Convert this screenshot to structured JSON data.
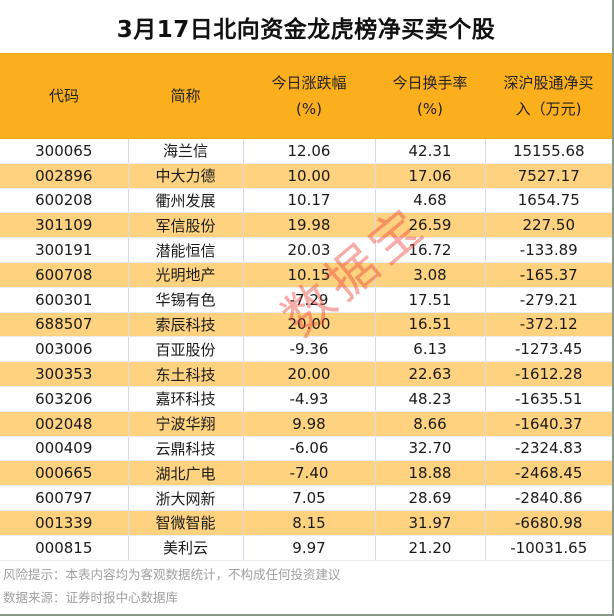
{
  "title": "3月17日北向资金龙虎榜净买卖个股",
  "colors": {
    "header_bg": "#FBAF1D",
    "alt_row_bg": "#FED27E",
    "row_bg": "#FFFFFF",
    "watermark": "#F0463C"
  },
  "table": {
    "headers": [
      {
        "line1": "代码",
        "line2": ""
      },
      {
        "line1": "简称",
        "line2": ""
      },
      {
        "line1": "今日涨跌幅",
        "line2": "(%)"
      },
      {
        "line1": "今日换手率",
        "line2": "(%)"
      },
      {
        "line1": "深沪股通净买",
        "line2": "入（万元)"
      }
    ],
    "rows": [
      [
        "300065",
        "海兰信",
        "12.06",
        "42.31",
        "15155.68"
      ],
      [
        "002896",
        "中大力德",
        "10.00",
        "17.06",
        "7527.17"
      ],
      [
        "600208",
        "衢州发展",
        "10.17",
        "4.68",
        "1654.75"
      ],
      [
        "301109",
        "军信股份",
        "19.98",
        "26.59",
        "227.50"
      ],
      [
        "300191",
        "潜能恒信",
        "20.03",
        "16.72",
        "-133.89"
      ],
      [
        "600708",
        "光明地产",
        "10.15",
        "3.08",
        "-165.37"
      ],
      [
        "600301",
        "华锡有色",
        "-7.29",
        "17.51",
        "-279.21"
      ],
      [
        "688507",
        "索辰科技",
        "20.00",
        "16.51",
        "-372.12"
      ],
      [
        "003006",
        "百亚股份",
        "-9.36",
        "6.13",
        "-1273.45"
      ],
      [
        "300353",
        "东土科技",
        "20.00",
        "22.63",
        "-1612.28"
      ],
      [
        "603206",
        "嘉环科技",
        "-4.93",
        "48.23",
        "-1635.51"
      ],
      [
        "002048",
        "宁波华翔",
        "9.98",
        "8.66",
        "-1640.37"
      ],
      [
        "000409",
        "云鼎科技",
        "-6.06",
        "32.70",
        "-2324.83"
      ],
      [
        "000665",
        "湖北广电",
        "-7.40",
        "18.88",
        "-2468.45"
      ],
      [
        "600797",
        "浙大网新",
        "7.05",
        "28.69",
        "-2840.86"
      ],
      [
        "001339",
        "智微智能",
        "8.15",
        "31.97",
        "-6680.98"
      ],
      [
        "000815",
        "美利云",
        "9.97",
        "21.20",
        "-10031.65"
      ]
    ]
  },
  "footer": {
    "risk_note": "风险提示：本表内容均为客观数据统计，不构成任何投资建议",
    "source_note": "数据来源：证券时报中心数据库"
  },
  "watermark": "数据宝"
}
